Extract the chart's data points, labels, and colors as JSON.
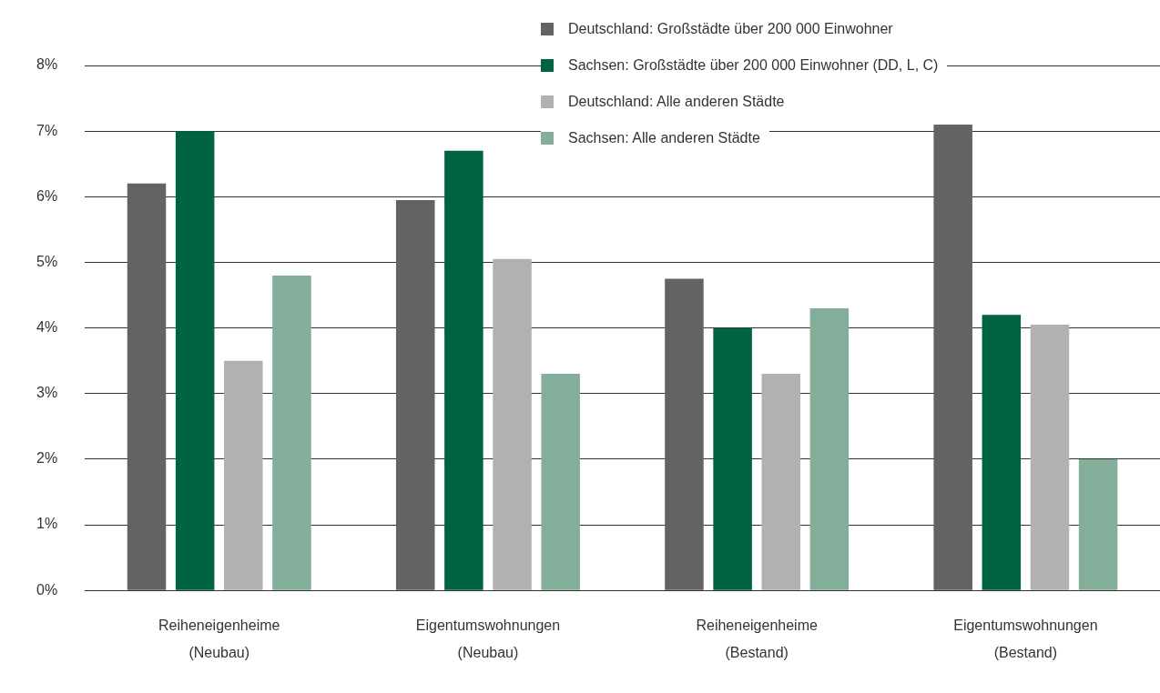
{
  "chart_data": {
    "type": "bar",
    "categories": [
      "Reiheneigenheime\n(Neubau)",
      "Eigentumswohnungen\n(Neubau)",
      "Reiheneigenheime\n(Bestand)",
      "Eigentumswohnungen\n(Bestand)"
    ],
    "series": [
      {
        "name": "Deutschland: Großstädte über 200 000 Einwohner",
        "color": "#636365",
        "values": [
          6.2,
          5.95,
          4.75,
          7.1
        ]
      },
      {
        "name": "Sachsen: Großstädte über 200 000 Einwohner (DD, L, C)",
        "color": "#006342",
        "values": [
          7.0,
          6.7,
          4.0,
          4.2
        ]
      },
      {
        "name": "Deutschland: Alle anderen Städte",
        "color": "#b1b1b4",
        "values": [
          3.5,
          5.05,
          3.3,
          4.05
        ]
      },
      {
        "name": "Sachsen: Alle anderen Städte",
        "color": "#83ae99",
        "values": [
          4.8,
          3.3,
          4.3,
          2.0
        ]
      }
    ],
    "ylim": [
      0,
      8
    ],
    "yticks": [
      {
        "value": 0,
        "label": "0%"
      },
      {
        "value": 1,
        "label": "1%"
      },
      {
        "value": 2,
        "label": "2%"
      },
      {
        "value": 3,
        "label": "3%"
      },
      {
        "value": 4,
        "label": "4%"
      },
      {
        "value": 5,
        "label": "5%"
      },
      {
        "value": 6,
        "label": "6%"
      },
      {
        "value": 7,
        "label": "7%"
      },
      {
        "value": 8,
        "label": "8%"
      }
    ],
    "grid": "y",
    "legend": "top right"
  }
}
